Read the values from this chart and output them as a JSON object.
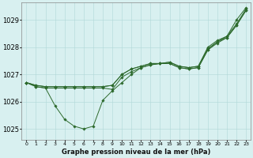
{
  "xlabel": "Graphe pression niveau de la mer (hPa)",
  "x_hours": [
    0,
    1,
    2,
    3,
    4,
    5,
    6,
    7,
    8,
    9,
    10,
    11,
    12,
    13,
    14,
    15,
    16,
    17,
    18,
    19,
    20,
    21,
    22,
    23
  ],
  "series": [
    [
      1026.7,
      1026.6,
      1026.55,
      1026.55,
      1026.55,
      1026.55,
      1026.55,
      1026.55,
      1026.55,
      1026.6,
      1027.0,
      1027.2,
      1027.3,
      1027.4,
      1027.4,
      1027.45,
      1027.3,
      1027.25,
      1027.3,
      1028.0,
      1028.25,
      1028.4,
      1029.0,
      1029.45
    ],
    [
      1026.7,
      1026.6,
      1026.55,
      1026.55,
      1026.55,
      1026.55,
      1026.55,
      1026.55,
      1026.55,
      1026.6,
      1027.0,
      1027.2,
      1027.3,
      1027.4,
      1027.4,
      1027.45,
      1027.3,
      1027.25,
      1027.3,
      1027.95,
      1028.2,
      1028.4,
      1028.85,
      1029.4
    ],
    [
      1026.7,
      1026.55,
      1026.5,
      1026.5,
      1026.5,
      1026.5,
      1026.5,
      1026.5,
      1026.5,
      1026.45,
      1026.9,
      1027.1,
      1027.25,
      1027.35,
      1027.4,
      1027.4,
      1027.25,
      1027.2,
      1027.25,
      1027.9,
      1028.2,
      1028.35,
      1028.8,
      1029.35
    ],
    [
      1026.7,
      1026.55,
      1026.5,
      1025.85,
      1025.35,
      1025.1,
      1025.0,
      1025.1,
      1026.05,
      1026.4,
      1026.7,
      1027.0,
      1027.25,
      1027.35,
      1027.4,
      1027.4,
      1027.25,
      1027.2,
      1027.25,
      1027.9,
      1028.15,
      1028.35,
      1028.8,
      1029.35
    ]
  ],
  "line_color": "#2d6a2d",
  "marker": "D",
  "marker_size": 1.8,
  "linewidth": 0.7,
  "background_color": "#d8f0f0",
  "grid_color": "#b0d8d8",
  "ylim": [
    1024.6,
    1029.65
  ],
  "yticks": [
    1025,
    1026,
    1027,
    1028,
    1029
  ],
  "ytick_fontsize": 6,
  "xtick_fontsize": 4.5,
  "xlabel_fontsize": 6,
  "figsize": [
    3.2,
    2.0
  ],
  "dpi": 100
}
